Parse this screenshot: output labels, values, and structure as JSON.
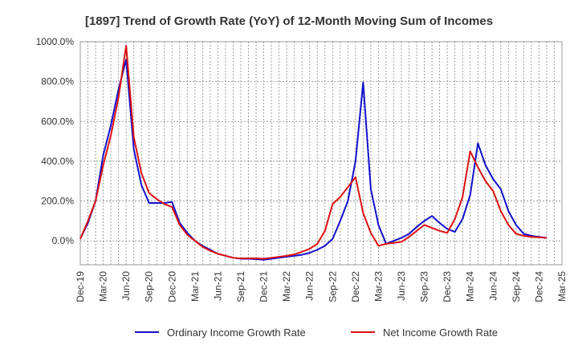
{
  "chart_data": {
    "type": "line",
    "title": "[1897]  Trend of Growth Rate (YoY) of 12-Month Moving Sum of Incomes",
    "xlabel": "",
    "ylabel": "",
    "x_start": "Dec-19",
    "x_ticks": [
      "Dec-19",
      "Mar-20",
      "Jun-20",
      "Sep-20",
      "Dec-20",
      "Mar-21",
      "Jun-21",
      "Sep-21",
      "Dec-21",
      "Mar-22",
      "Jun-22",
      "Sep-22",
      "Dec-22",
      "Mar-23",
      "Jun-23",
      "Sep-23",
      "Dec-23",
      "Mar-24",
      "Jun-24",
      "Sep-24",
      "Dec-24",
      "Mar-25"
    ],
    "y_ticks": [
      "0.0%",
      "200.0%",
      "400.0%",
      "600.0%",
      "800.0%",
      "1000.0%"
    ],
    "ylim": [
      -120,
      1000
    ],
    "grid": "dotted vertical and horizontal",
    "legend_position": "bottom",
    "series": [
      {
        "name": "Ordinary Income Growth Rate",
        "color": "#1010cc",
        "values": [
          10,
          90,
          200,
          430,
          580,
          760,
          910,
          460,
          280,
          190,
          190,
          190,
          195,
          90,
          40,
          0,
          -25,
          -45,
          -65,
          -75,
          -85,
          -90,
          -90,
          -92,
          -95,
          -90,
          -85,
          -80,
          -75,
          -70,
          -60,
          -45,
          -25,
          10,
          100,
          200,
          400,
          795,
          260,
          80,
          -15,
          0,
          15,
          35,
          70,
          100,
          125,
          90,
          60,
          45,
          110,
          230,
          490,
          380,
          310,
          260,
          150,
          80,
          35,
          25,
          20,
          15,
          null
        ]
      },
      {
        "name": "Net Income Growth Rate",
        "color": "#dd1111",
        "values": [
          10,
          100,
          200,
          380,
          530,
          720,
          980,
          520,
          340,
          240,
          210,
          185,
          170,
          80,
          30,
          0,
          -30,
          -50,
          -65,
          -75,
          -85,
          -88,
          -88,
          -88,
          -90,
          -85,
          -80,
          -75,
          -68,
          -55,
          -40,
          -15,
          50,
          185,
          220,
          270,
          320,
          140,
          40,
          -25,
          -15,
          -10,
          -5,
          20,
          50,
          80,
          65,
          50,
          40,
          110,
          220,
          450,
          370,
          300,
          250,
          150,
          80,
          35,
          25,
          20,
          18,
          15,
          null
        ]
      }
    ]
  }
}
